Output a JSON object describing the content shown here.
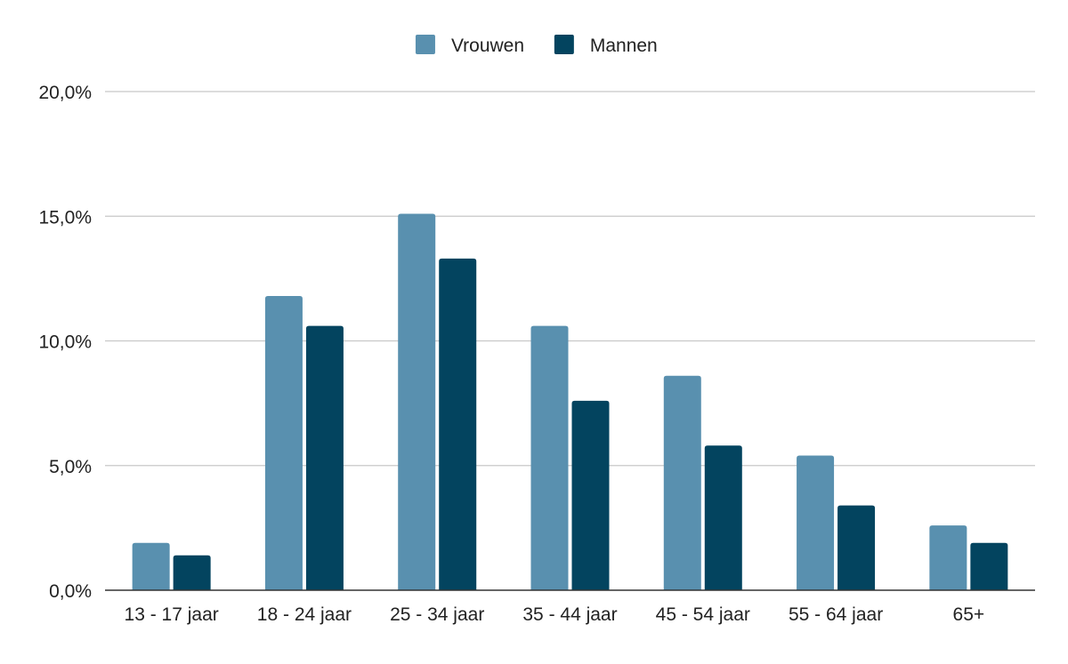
{
  "chart_data": {
    "type": "bar",
    "categories": [
      "13 - 17 jaar",
      "18 - 24 jaar",
      "25 - 34 jaar",
      "35 - 44 jaar",
      "45 - 54 jaar",
      "55 - 64 jaar",
      "65+"
    ],
    "series": [
      {
        "name": "Vrouwen",
        "color": "#5990af",
        "values": [
          1.9,
          11.8,
          15.1,
          10.6,
          8.6,
          5.4,
          2.6
        ]
      },
      {
        "name": "Mannen",
        "color": "#03445f",
        "values": [
          1.4,
          10.6,
          13.3,
          7.6,
          5.8,
          3.4,
          1.9
        ]
      }
    ],
    "title": "",
    "xlabel": "",
    "ylabel": "",
    "ylim": [
      0,
      20
    ],
    "yticks": [
      0,
      5,
      10,
      15,
      20
    ],
    "ytick_labels": [
      "0,0%",
      "5,0%",
      "10,0%",
      "15,0%",
      "20,0%"
    ],
    "grid": true,
    "legend_position": "top-center",
    "gridline_color": "#c8c8c8",
    "axis_color": "#333333"
  }
}
